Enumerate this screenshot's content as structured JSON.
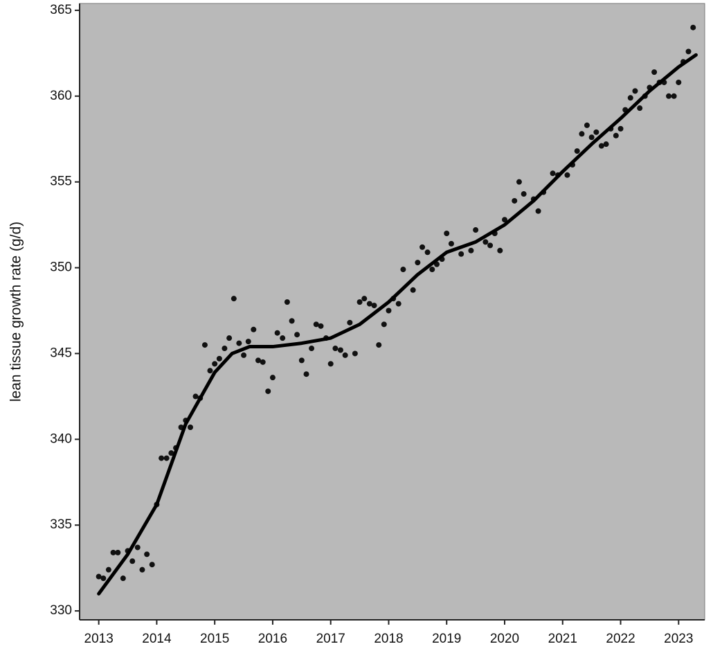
{
  "chart_data": {
    "type": "scatter",
    "y_label": "lean tissue growth rate (g/d)",
    "xlim": [
      2012.67,
      2023.45
    ],
    "ylim": [
      329.48,
      365.4
    ],
    "xticks": [
      2013,
      2014,
      2015,
      2016,
      2017,
      2018,
      2019,
      2020,
      2021,
      2022,
      2023
    ],
    "yticks": [
      330,
      335,
      340,
      345,
      350,
      355,
      360,
      365
    ],
    "background": "#b9b9b9",
    "series": [
      {
        "type": "scatter",
        "color": "#111111",
        "x": [
          2013.0,
          2013.08,
          2013.17,
          2013.25,
          2013.33,
          2013.42,
          2013.5,
          2013.58,
          2013.67,
          2013.75,
          2013.83,
          2013.92,
          2014.0,
          2014.08,
          2014.17,
          2014.25,
          2014.33,
          2014.42,
          2014.5,
          2014.58,
          2014.67,
          2014.75,
          2014.83,
          2014.92,
          2015.0,
          2015.08,
          2015.17,
          2015.25,
          2015.33,
          2015.42,
          2015.5,
          2015.58,
          2015.67,
          2015.75,
          2015.83,
          2015.92,
          2016.0,
          2016.08,
          2016.17,
          2016.25,
          2016.33,
          2016.42,
          2016.5,
          2016.58,
          2016.67,
          2016.75,
          2016.83,
          2016.92,
          2017.0,
          2017.08,
          2017.17,
          2017.25,
          2017.33,
          2017.42,
          2017.5,
          2017.58,
          2017.67,
          2017.75,
          2017.83,
          2017.92,
          2018.0,
          2018.08,
          2018.17,
          2018.25,
          2018.42,
          2018.5,
          2018.58,
          2018.67,
          2018.75,
          2018.83,
          2018.92,
          2019.0,
          2019.08,
          2019.25,
          2019.42,
          2019.5,
          2019.67,
          2019.75,
          2019.83,
          2019.92,
          2020.0,
          2020.17,
          2020.25,
          2020.33,
          2020.5,
          2020.58,
          2020.67,
          2020.83,
          2020.92,
          2021.08,
          2021.17,
          2021.25,
          2021.33,
          2021.42,
          2021.5,
          2021.58,
          2021.67,
          2021.75,
          2021.83,
          2021.92,
          2022.0,
          2022.08,
          2022.17,
          2022.25,
          2022.33,
          2022.42,
          2022.5,
          2022.58,
          2022.67,
          2022.75,
          2022.83,
          2022.92,
          2023.0,
          2023.08,
          2023.17,
          2023.25
        ],
        "values": [
          332.0,
          331.9,
          332.4,
          333.4,
          333.4,
          331.9,
          333.5,
          332.9,
          333.7,
          332.4,
          333.3,
          332.7,
          336.2,
          338.9,
          338.9,
          339.2,
          339.5,
          340.7,
          341.1,
          340.7,
          342.5,
          342.4,
          345.5,
          344.0,
          344.4,
          344.7,
          345.3,
          345.9,
          348.2,
          345.6,
          344.9,
          345.7,
          346.4,
          344.6,
          344.5,
          342.8,
          343.6,
          346.2,
          345.9,
          348.0,
          346.9,
          346.1,
          344.6,
          343.8,
          345.3,
          346.7,
          346.6,
          345.9,
          344.4,
          345.3,
          345.2,
          344.9,
          346.8,
          345.0,
          348.0,
          348.2,
          347.9,
          347.8,
          345.5,
          346.7,
          347.5,
          348.2,
          347.9,
          349.9,
          348.7,
          350.3,
          351.2,
          350.9,
          349.9,
          350.2,
          350.5,
          352.0,
          351.4,
          350.8,
          351.0,
          352.2,
          351.5,
          351.3,
          352.0,
          351.0,
          352.8,
          353.9,
          355.0,
          354.3,
          354.0,
          353.3,
          354.4,
          355.5,
          355.4,
          355.4,
          356.0,
          356.8,
          357.8,
          358.3,
          357.6,
          357.9,
          357.1,
          357.2,
          358.1,
          357.7,
          358.1,
          359.2,
          359.9,
          360.3,
          359.3,
          360.0,
          360.5,
          361.4,
          360.8,
          360.8,
          360.0,
          360.0,
          360.8,
          362.0,
          362.6,
          364.0
        ]
      },
      {
        "type": "line",
        "color": "#000000",
        "x": [
          2013.0,
          2013.5,
          2014.0,
          2014.5,
          2015.0,
          2015.3,
          2015.6,
          2016.0,
          2016.5,
          2017.0,
          2017.5,
          2018.0,
          2018.5,
          2019.0,
          2019.5,
          2020.0,
          2020.5,
          2021.0,
          2021.5,
          2022.0,
          2022.5,
          2023.0,
          2023.3
        ],
        "values": [
          331.0,
          333.3,
          336.2,
          340.9,
          343.9,
          345.0,
          345.4,
          345.4,
          345.6,
          345.9,
          346.7,
          348.0,
          349.6,
          350.9,
          351.5,
          352.5,
          353.9,
          355.6,
          357.2,
          358.7,
          360.3,
          361.7,
          362.4
        ]
      }
    ]
  }
}
